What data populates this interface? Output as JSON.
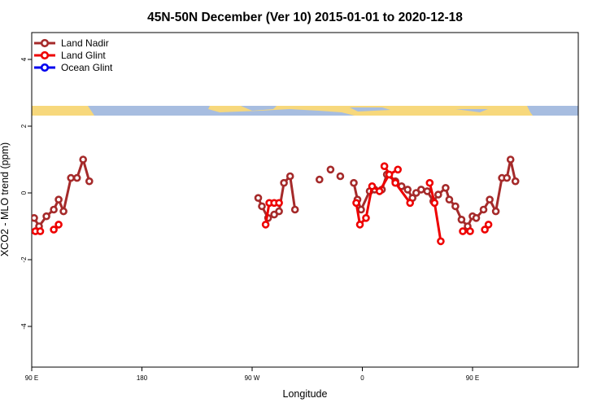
{
  "chart_data": {
    "type": "line",
    "title": "45N-50N December (Ver 10)   2015-01-01 to 2020-12-18",
    "xlabel": "Longitude",
    "ylabel": "XCO2 - MLO trend (ppm)",
    "xlim": [
      90,
      450
    ],
    "ylim": [
      -5.2,
      4.8
    ],
    "x_ticks": [
      {
        "value": 90,
        "label": "90 E"
      },
      {
        "value": 180,
        "label": "180"
      },
      {
        "value": 270,
        "label": "90 W"
      },
      {
        "value": 360,
        "label": "0"
      },
      {
        "value": 450,
        "label": "90 E"
      },
      {
        "value": 540,
        "label": "180"
      }
    ],
    "y_ticks": [
      {
        "value": 4,
        "label": "4"
      },
      {
        "value": 2,
        "label": "2"
      },
      {
        "value": 0,
        "label": "0"
      },
      {
        "value": -2,
        "label": "-2"
      },
      {
        "value": -4,
        "label": "-4"
      }
    ],
    "legend_position": "top-left",
    "grid": false,
    "land_strip_colors": {
      "ocean": "#a7bde0",
      "land": "#f7d87c"
    },
    "series": [
      {
        "name": "Land Nadir",
        "color": "#a52a2a",
        "segments": [
          [
            [
              92,
              -0.75
            ],
            [
              96,
              -1.0
            ],
            [
              102,
              -0.7
            ],
            [
              108,
              -0.5
            ],
            [
              112,
              -0.2
            ],
            [
              116,
              -0.55
            ],
            [
              122,
              0.45
            ],
            [
              127,
              0.45
            ],
            [
              132,
              1.0
            ],
            [
              137,
              0.35
            ]
          ],
          [
            [
              275,
              -0.15
            ],
            [
              278,
              -0.4
            ],
            [
              283,
              -0.75
            ],
            [
              288,
              -0.65
            ],
            [
              292,
              -0.55
            ],
            [
              296,
              0.3
            ],
            [
              301,
              0.5
            ],
            [
              305,
              -0.5
            ]
          ],
          [
            [
              353,
              0.3
            ],
            [
              356,
              -0.2
            ],
            [
              359,
              -0.5
            ],
            [
              366,
              0.05
            ],
            [
              370,
              0.1
            ],
            [
              376,
              0.1
            ],
            [
              380,
              0.55
            ],
            [
              387,
              0.35
            ],
            [
              392,
              0.2
            ],
            [
              397,
              0.1
            ],
            [
              401,
              -0.15
            ],
            [
              404,
              0.0
            ],
            [
              408,
              0.1
            ],
            [
              413,
              0.05
            ],
            [
              418,
              -0.25
            ],
            [
              422,
              -0.05
            ],
            [
              428,
              0.15
            ],
            [
              431,
              -0.2
            ],
            [
              436,
              -0.4
            ],
            [
              441,
              -0.8
            ],
            [
              446,
              -1.0
            ],
            [
              450,
              -0.7
            ],
            [
              453,
              -0.75
            ],
            [
              459,
              -0.5
            ],
            [
              464,
              -0.2
            ],
            [
              469,
              -0.55
            ],
            [
              474,
              0.45
            ],
            [
              478,
              0.45
            ],
            [
              481,
              1.0
            ],
            [
              485,
              0.35
            ]
          ]
        ],
        "points_isolated": [
          [
            325,
            0.4
          ],
          [
            334,
            0.7
          ],
          [
            342,
            0.5
          ]
        ]
      },
      {
        "name": "Land Glint",
        "color": "#ee0000",
        "segments": [
          [
            [
              93,
              -1.15
            ],
            [
              97,
              -1.15
            ]
          ],
          [
            [
              108,
              -1.1
            ],
            [
              112,
              -0.95
            ]
          ],
          [
            [
              281,
              -0.95
            ],
            [
              284,
              -0.3
            ],
            [
              288,
              -0.3
            ],
            [
              292,
              -0.3
            ]
          ],
          [
            [
              355,
              -0.3
            ],
            [
              358,
              -0.95
            ],
            [
              363,
              -0.75
            ],
            [
              368,
              0.2
            ],
            [
              374,
              0.05
            ],
            [
              382,
              0.55
            ],
            [
              389,
              0.7
            ]
          ],
          [
            [
              378,
              0.8
            ],
            [
              387,
              0.3
            ],
            [
              399,
              -0.3
            ]
          ],
          [
            [
              415,
              0.3
            ],
            [
              419,
              -0.3
            ],
            [
              424,
              -1.45
            ]
          ],
          [
            [
              442,
              -1.15
            ],
            [
              448,
              -1.15
            ]
          ],
          [
            [
              460,
              -1.1
            ],
            [
              463,
              -0.95
            ]
          ]
        ],
        "points_isolated": []
      },
      {
        "name": "Ocean Glint",
        "color": "#0000ee",
        "segments": [],
        "points_isolated": []
      }
    ]
  }
}
